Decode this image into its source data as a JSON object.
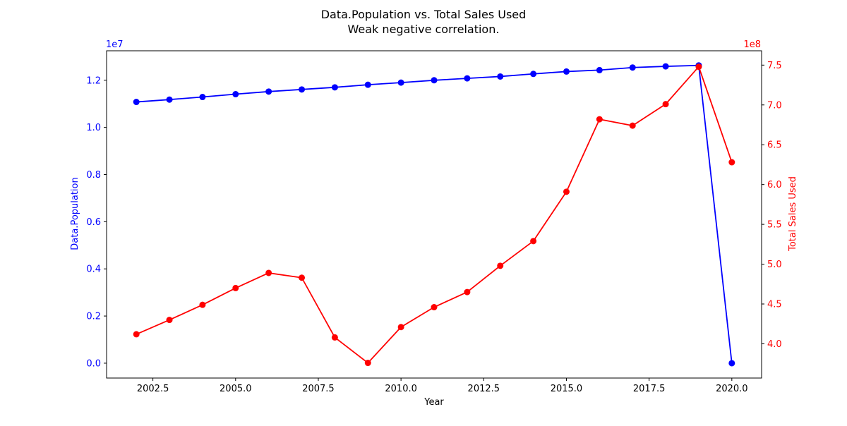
{
  "chart_data": {
    "type": "line",
    "title": "Data.Population vs. Total Sales Used",
    "subtitle": "Weak negative correlation.",
    "xlabel": "Year",
    "x": [
      2002,
      2003,
      2004,
      2005,
      2006,
      2007,
      2008,
      2009,
      2010,
      2011,
      2012,
      2013,
      2014,
      2015,
      2016,
      2017,
      2018,
      2019,
      2020
    ],
    "xlim": [
      2001.1,
      2020.9
    ],
    "xticks": [
      {
        "value": 2002.5,
        "label": "2002.5"
      },
      {
        "value": 2005,
        "label": "2005.0"
      },
      {
        "value": 2007.5,
        "label": "2007.5"
      },
      {
        "value": 2010,
        "label": "2010.0"
      },
      {
        "value": 2012.5,
        "label": "2012.5"
      },
      {
        "value": 2015,
        "label": "2015.0"
      },
      {
        "value": 2017.5,
        "label": "2017.5"
      },
      {
        "value": 2020,
        "label": "2020.0"
      }
    ],
    "grid": false,
    "axes": {
      "left": {
        "label": "Data.Population",
        "color": "#0000ff",
        "offset_label": "1e7",
        "scale": 10000000,
        "ylim": [
          -0.063,
          1.325
        ],
        "ticks": [
          {
            "value": 0.0,
            "label": "0.0"
          },
          {
            "value": 0.2,
            "label": "0.2"
          },
          {
            "value": 0.4,
            "label": "0.4"
          },
          {
            "value": 0.6,
            "label": "0.6"
          },
          {
            "value": 0.8,
            "label": "0.8"
          },
          {
            "value": 1.0,
            "label": "1.0"
          },
          {
            "value": 1.2,
            "label": "1.2"
          }
        ]
      },
      "right": {
        "label": "Total Sales Used",
        "color": "#ff0000",
        "offset_label": "1e8",
        "scale": 100000000,
        "ylim": [
          3.57,
          7.68
        ],
        "ticks": [
          {
            "value": 4.0,
            "label": "4.0"
          },
          {
            "value": 4.5,
            "label": "4.5"
          },
          {
            "value": 5.0,
            "label": "5.0"
          },
          {
            "value": 5.5,
            "label": "5.5"
          },
          {
            "value": 6.0,
            "label": "6.0"
          },
          {
            "value": 6.5,
            "label": "6.5"
          },
          {
            "value": 7.0,
            "label": "7.0"
          },
          {
            "value": 7.5,
            "label": "7.5"
          }
        ]
      }
    },
    "series": [
      {
        "axis": "left",
        "color": "#0000ff",
        "marker": "circle",
        "values": [
          11080000,
          11180000,
          11290000,
          11410000,
          11520000,
          11610000,
          11700000,
          11810000,
          11900000,
          12000000,
          12080000,
          12160000,
          12270000,
          12370000,
          12430000,
          12540000,
          12590000,
          12630000,
          0
        ]
      },
      {
        "axis": "right",
        "color": "#ff0000",
        "marker": "circle",
        "values": [
          412000000,
          430000000,
          449000000,
          470000000,
          489000000,
          483000000,
          408000000,
          376000000,
          421000000,
          446000000,
          465000000,
          498000000,
          529000000,
          591000000,
          682000000,
          674000000,
          701000000,
          748000000,
          628000000
        ]
      }
    ]
  }
}
